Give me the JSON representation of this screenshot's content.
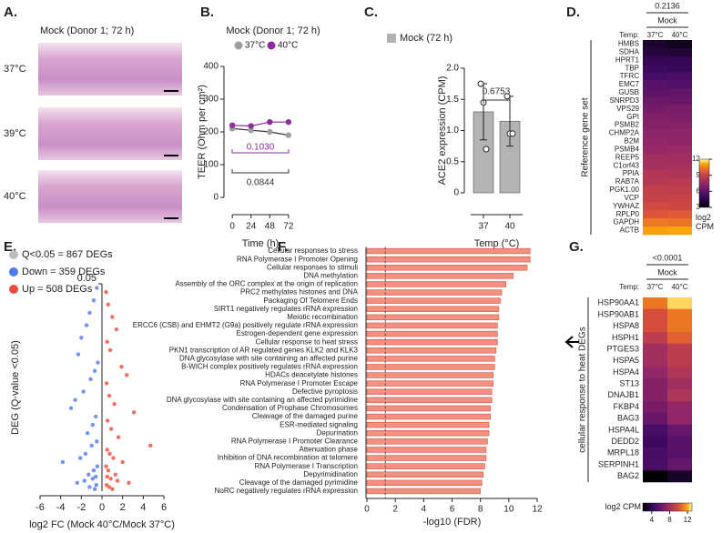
{
  "panel_a": {
    "label": "A.",
    "title": "Mock (Donor 1; 72 h)",
    "rows": [
      "37°C",
      "39°C",
      "40°C"
    ]
  },
  "chart_data": [
    {
      "type": "line",
      "panel": "B.",
      "title": "Mock (Donor 1; 72 h)",
      "x": [
        0,
        24,
        48,
        72
      ],
      "xlim": [
        -6,
        78
      ],
      "xticks": [
        0,
        24,
        48,
        72
      ],
      "ylim": [
        0,
        400
      ],
      "yticks": [
        0,
        100,
        200,
        300,
        400
      ],
      "xlabel": "Time (h)",
      "ylabel": "TEER (Ohm per cm²)",
      "series": [
        {
          "name": "37°C",
          "color": "#9e9e9e",
          "values": [
            210,
            205,
            200,
            190
          ]
        },
        {
          "name": "40°C",
          "color": "#8e2c9c",
          "values": [
            220,
            218,
            230,
            230
          ]
        }
      ],
      "annotations": [
        {
          "text": "0.1030",
          "color": "#8e2c9c"
        },
        {
          "text": "0.0844",
          "color": "#333333"
        }
      ]
    },
    {
      "type": "bar",
      "panel": "C.",
      "orientation": "vertical",
      "categories": [
        "37",
        "40"
      ],
      "xlabel": "Temp (°C)",
      "ylabel": "ACE2 expression (CPM)",
      "ylim": [
        0,
        2
      ],
      "yticks": [
        0,
        0.5,
        {
          "value": 1,
          "label": "1.0"
        },
        1.5,
        {
          "value": 2,
          "label": "2.0"
        }
      ],
      "series": [
        {
          "name": "Mock (72 h)",
          "color": "#b3b3b3",
          "values": [
            1.3,
            1.15
          ],
          "errors": [
            0.45,
            0.4
          ],
          "replicates": [
            [
              1.75,
              1.45,
              0.7
            ],
            [
              1.55,
              0.95,
              0.95
            ]
          ]
        }
      ],
      "annotations": [
        {
          "text": "0.6753",
          "color": "#333333"
        }
      ]
    },
    {
      "type": "heatmap",
      "panel": "D.",
      "colormap": "inferno",
      "pvalue": "0.2136",
      "group": "Mock",
      "column_axis_label": "Temp:",
      "row_axis_label": "Reference gene set",
      "categories": [
        "HMBS",
        "SDHA",
        "HPRT1",
        "TBP",
        "TFRC",
        "EMC7",
        "GUSB",
        "SNRPD3",
        "VPS29",
        "GPI",
        "PSMB2",
        "CHMP2A",
        "B2M",
        "PSMB4",
        "REEP5",
        "C1orf43",
        "PPIA",
        "RAB7A",
        "PGK1.00",
        "VCP",
        "YWHAZ",
        "RPLP0",
        "GAPDH",
        "ACTB"
      ],
      "series": [
        {
          "name": "37°C",
          "values": [
            4.0,
            4.3,
            4.8,
            5.0,
            5.4,
            5.8,
            6.0,
            6.4,
            6.7,
            7.0,
            7.1,
            7.3,
            7.5,
            7.6,
            7.9,
            8.0,
            8.4,
            8.5,
            8.9,
            9.0,
            9.4,
            9.8,
            10.4,
            11.0
          ]
        },
        {
          "name": "40°C",
          "values": [
            3.6,
            4.2,
            4.9,
            4.9,
            5.5,
            5.7,
            6.1,
            6.3,
            6.8,
            6.9,
            7.2,
            7.3,
            7.4,
            7.7,
            7.9,
            8.1,
            8.3,
            8.6,
            8.8,
            9.1,
            9.3,
            9.9,
            10.3,
            11.1
          ]
        }
      ],
      "clim": [
        3,
        12
      ],
      "cticks": [
        3,
        6,
        9,
        12
      ],
      "colorbar_label": "log2 CPM"
    },
    {
      "type": "scatter",
      "panel": "E.",
      "legend_title": "Q<0.05 = 867 DEGs",
      "legend_title_color": "#bdbdbd",
      "xlabel": "log2 FC (Mock 40°C/Mock 37°C)",
      "ylabel": "DEG (Q-value <0.05)",
      "xlim": [
        -6,
        6
      ],
      "xticks": [
        -6,
        -4,
        -2,
        0,
        2,
        4,
        6
      ],
      "ylim": [
        0,
        0.05
      ],
      "yticks": [
        0.05
      ],
      "series": [
        {
          "name": "Down = 359 DEGs",
          "color": "#4f7bf0",
          "x": [
            -0.5,
            -0.8,
            -1.2,
            -1.5,
            -2.0,
            -2.3,
            -0.4,
            -0.7,
            -1.1,
            -1.8,
            -2.6,
            -3.0,
            -0.6,
            -0.9,
            -1.4,
            -0.5,
            -1.0,
            -1.6,
            -2.1,
            -3.8,
            -0.45,
            -0.8,
            -1.3,
            -0.6,
            -0.9,
            -1.7,
            -2.4,
            -0.55,
            -1.2,
            -0.7
          ],
          "values": [
            0.049,
            0.046,
            0.043,
            0.04,
            0.037,
            0.033,
            0.031,
            0.029,
            0.027,
            0.024,
            0.022,
            0.02,
            0.018,
            0.016,
            0.014,
            0.012,
            0.011,
            0.009,
            0.008,
            0.007,
            0.006,
            0.005,
            0.004,
            0.0035,
            0.003,
            0.0025,
            0.002,
            0.0015,
            0.001,
            0.0005
          ]
        },
        {
          "name": "Up = 508 DEGs",
          "color": "#ee4b3b",
          "x": [
            0.4,
            0.6,
            1.0,
            1.4,
            0.5,
            0.8,
            1.9,
            2.4,
            0.45,
            0.7,
            1.2,
            3.1,
            0.55,
            0.9,
            1.6,
            4.7,
            0.5,
            0.75,
            1.1,
            2.0,
            0.4,
            0.6,
            1.3,
            0.5,
            0.85,
            1.5,
            2.6,
            0.45,
            0.7,
            1.0
          ],
          "values": [
            0.048,
            0.045,
            0.042,
            0.039,
            0.036,
            0.034,
            0.03,
            0.028,
            0.026,
            0.023,
            0.021,
            0.019,
            0.017,
            0.015,
            0.013,
            0.011,
            0.01,
            0.009,
            0.008,
            0.007,
            0.006,
            0.005,
            0.004,
            0.0035,
            0.003,
            0.0025,
            0.002,
            0.0015,
            0.001,
            0.0005
          ]
        }
      ]
    },
    {
      "type": "bar",
      "panel": "F.",
      "orientation": "horizontal",
      "color": "#f4907f",
      "edge_color": "#d9533f",
      "xlabel": "-log10 (FDR)",
      "xlim": [
        0,
        12
      ],
      "xticks": [
        0,
        2,
        4,
        6,
        8,
        10,
        12
      ],
      "threshold_line": 1.3,
      "categories": [
        "Cellular responses to stress",
        "RNA Polymerase I Promoter Opening",
        "Cellular responses to stimuli",
        "DNA methylation",
        "Assembly of the ORC complex at the origin of replication",
        "PRC2 methylates histones and DNA",
        "Packaging Of Telomere Ends",
        "SIRT1 negatively regulates rRNA expression",
        "Meiotic recombination",
        "ERCC6 (CSB) and EHMT2 (G9a) positively regulate rRNA expression",
        "Estrogen-dependent gene expression",
        "Cellular response to heat stress",
        "PKN1 transcription of AR regulated genes KLK2 and KLK3",
        "DNA glycosylase with site containing an affected purine",
        "B-WICH complex positively regulates rRNA expression",
        "HDACs deacetylate histones",
        "RNA Polymerase I Promoter Escape",
        "Defective pyroptosis",
        "DNA glycosylase with site containing an affected pyrimidine",
        "Condensation of Prophase Chromosomes",
        "Cleavage of the damaged purine",
        "ESR-mediated signaling",
        "Depurination",
        "RNA Polymerase I Promoter Clearance",
        "Attenuation phase",
        "Inhibition of DNA recombination at telomere",
        "RNA Polymerase I Transcription",
        "Depyrimidination",
        "Cleavage of the damaged pyrimidine",
        "NoRC negatively regulates rRNA expression"
      ],
      "values": [
        11.5,
        11.5,
        11.3,
        10.3,
        9.8,
        9.5,
        9.4,
        9.3,
        9.3,
        9.2,
        9.2,
        9.2,
        9.1,
        9.0,
        9.0,
        8.9,
        8.9,
        8.8,
        8.8,
        8.7,
        8.7,
        8.6,
        8.6,
        8.5,
        8.4,
        8.4,
        8.3,
        8.2,
        8.1,
        8.0
      ]
    },
    {
      "type": "heatmap",
      "panel": "G.",
      "colormap": "inferno",
      "pvalue": "<0.0001",
      "group": "Mock",
      "column_axis_label": "Temp:",
      "row_axis_label": "cellular response to heat DEGs",
      "categories": [
        "HSP90AA1",
        "HSP90AB1",
        "HSPA8",
        "HSPH1",
        "PTGES3",
        "HSPA5",
        "HSPA4",
        "ST13",
        "DNAJB1",
        "FKBP4",
        "BAG3",
        "HSPA4L",
        "DEDD2",
        "MRPL18",
        "SERPINH1",
        "BAG2"
      ],
      "series": [
        {
          "name": "37°C",
          "values": [
            11.0,
            10.0,
            10.0,
            9.0,
            8.0,
            8.0,
            7.5,
            7.0,
            7.0,
            6.5,
            6.0,
            5.0,
            4.5,
            5.0,
            5.0,
            2.0
          ]
        },
        {
          "name": "40°C",
          "values": [
            12.5,
            11.0,
            11.0,
            10.5,
            9.0,
            9.0,
            8.5,
            8.0,
            8.5,
            7.5,
            7.5,
            6.0,
            5.5,
            5.5,
            6.0,
            3.0
          ]
        }
      ],
      "clim": [
        2,
        13
      ],
      "cticks": [
        4,
        8,
        12
      ],
      "colorbar_label": "log2 CPM"
    }
  ]
}
